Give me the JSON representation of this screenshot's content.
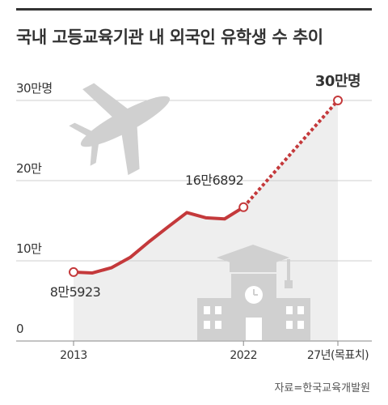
{
  "title": "국내 고등교육기관 내 외국인 유학생 수 추이",
  "source": "자료=한국교육개발원",
  "colors": {
    "line": "#c4393b",
    "grid": "#cfcfcf",
    "area": "#eeeeee",
    "illustration": "#d0d0d0",
    "text": "#333333"
  },
  "chart_data": {
    "type": "line",
    "title": "국내 고등교육기관 내 외국인 유학생 수 추이",
    "xlabel": "",
    "ylabel": "",
    "y_tick_labels": [
      "0",
      "10만",
      "20만",
      "30만명"
    ],
    "x_tick_labels": [
      "2013",
      "2022",
      "27년(목표치)"
    ],
    "ylim": [
      0,
      300000
    ],
    "grid": true,
    "series": [
      {
        "x": [
          2013,
          2014,
          2015,
          2016,
          2017,
          2018,
          2019,
          2020,
          2021,
          2022
        ],
        "values": [
          85923,
          84891,
          91332,
          104262,
          123858,
          142205,
          160165,
          153695,
          152281,
          166892
        ],
        "style": "solid"
      },
      {
        "x": [
          2022,
          2027
        ],
        "values": [
          166892,
          300000
        ],
        "style": "dotted"
      }
    ],
    "annotations": [
      {
        "x": 2013,
        "y": 85923,
        "label": "8만5923"
      },
      {
        "x": 2022,
        "y": 166892,
        "label": "16만6892"
      },
      {
        "x": 2027,
        "y": 300000,
        "label": "30만명"
      }
    ]
  }
}
